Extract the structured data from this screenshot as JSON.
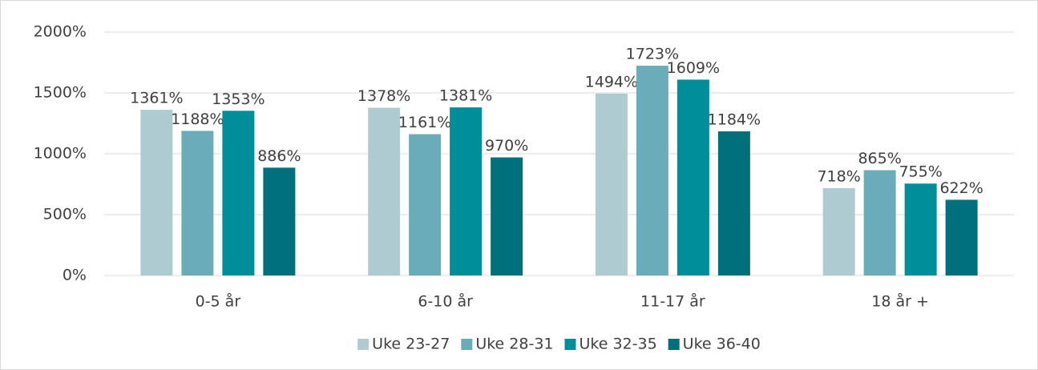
{
  "chart_data": {
    "type": "bar",
    "categories": [
      "0-5 år",
      "6-10 år",
      "11-17 år",
      "18 år +"
    ],
    "series": [
      {
        "name": "Uke 23-27",
        "color": "#aecbd2",
        "values": [
          1361,
          1378,
          1494,
          718
        ],
        "value_labels": [
          "1361%",
          "1378%",
          "1494%",
          "718%"
        ]
      },
      {
        "name": "Uke 28-31",
        "color": "#6aacba",
        "values": [
          1188,
          1161,
          1723,
          865
        ],
        "value_labels": [
          "1188%",
          "1161%",
          "1723%",
          "865%"
        ]
      },
      {
        "name": "Uke 32-35",
        "color": "#008e9b",
        "values": [
          1353,
          1381,
          1609,
          755
        ],
        "value_labels": [
          "1353%",
          "1381%",
          "1609%",
          "755%"
        ]
      },
      {
        "name": "Uke 36-40",
        "color": "#00707c",
        "values": [
          886,
          970,
          1184,
          622
        ],
        "value_labels": [
          "886%",
          "970%",
          "1184%",
          "622%"
        ]
      }
    ],
    "ylim": [
      0,
      2000
    ],
    "yticks": [
      {
        "value": 0,
        "label": "0%"
      },
      {
        "value": 500,
        "label": "500%"
      },
      {
        "value": 1000,
        "label": "1000%"
      },
      {
        "value": 1500,
        "label": "1500%"
      },
      {
        "value": 2000,
        "label": "2000%"
      }
    ],
    "grid": true,
    "legend": "bottom"
  }
}
